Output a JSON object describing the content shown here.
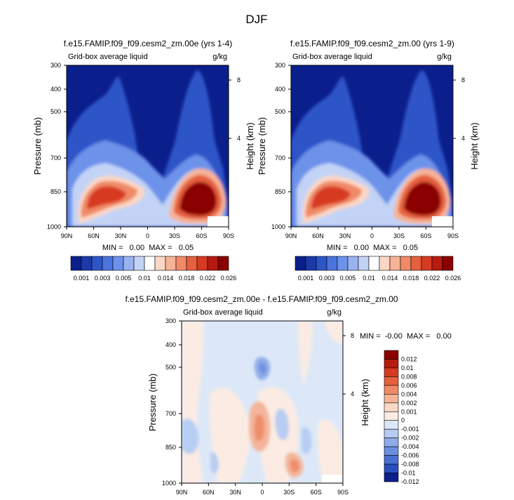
{
  "page": {
    "title": "DJF"
  },
  "chart_data": [
    {
      "type": "heatmap",
      "title": "f.e15.FAMIP.f09_f09.cesm2_zm.00e (yrs 1-4)",
      "left_label": "Grid-box average liquid",
      "right_label": "g/kg",
      "ylabel": "Pressure (mb)",
      "ylabel_right": "Height (km)",
      "x_ticks": [
        "90N",
        "60N",
        "30N",
        "0",
        "30S",
        "60S",
        "90S"
      ],
      "y_ticks": [
        "300",
        "400",
        "500",
        "700",
        "850",
        "1000"
      ],
      "y_right_ticks": [
        "8",
        "4"
      ],
      "ylim": [
        300,
        1000
      ],
      "y_log_scale": true,
      "minmax_text": "MIN =   0.00  MAX =   0.05",
      "colorbar_labels": [
        "0.001",
        "0.003",
        "0.005",
        "0.01",
        "0.014",
        "0.018",
        "0.022",
        "0.026"
      ],
      "levels": [
        0.001,
        0.002,
        0.003,
        0.004,
        0.005,
        0.0075,
        0.01,
        0.012,
        0.014,
        0.016,
        0.018,
        0.02,
        0.022,
        0.024,
        0.026
      ]
    },
    {
      "type": "heatmap",
      "title": "f.e15.FAMIP.f09_f09.cesm2_zm.00 (yrs 1-9)",
      "left_label": "Grid-box average liquid",
      "right_label": "g/kg",
      "ylabel": "Pressure (mb)",
      "ylabel_right": "Height (km)",
      "x_ticks": [
        "90N",
        "60N",
        "30N",
        "0",
        "30S",
        "60S",
        "90S"
      ],
      "y_ticks": [
        "300",
        "400",
        "500",
        "700",
        "850",
        "1000"
      ],
      "y_right_ticks": [
        "8",
        "4"
      ],
      "ylim": [
        300,
        1000
      ],
      "y_log_scale": true,
      "minmax_text": "MIN =   0.00  MAX =   0.05",
      "colorbar_labels": [
        "0.001",
        "0.003",
        "0.005",
        "0.01",
        "0.014",
        "0.018",
        "0.022",
        "0.026"
      ],
      "levels": [
        0.001,
        0.002,
        0.003,
        0.004,
        0.005,
        0.0075,
        0.01,
        0.012,
        0.014,
        0.016,
        0.018,
        0.02,
        0.022,
        0.024,
        0.026
      ]
    },
    {
      "type": "heatmap",
      "title": "f.e15.FAMIP.f09_f09.cesm2_zm.00e - f.e15.FAMIP.f09_f09.cesm2_zm.00",
      "left_label": "Grid-box average liquid",
      "right_label": "g/kg",
      "ylabel": "Pressure (mb)",
      "ylabel_right": "Height (km)",
      "x_ticks": [
        "90N",
        "60N",
        "30N",
        "0",
        "30S",
        "60S",
        "90S"
      ],
      "y_ticks": [
        "300",
        "400",
        "500",
        "700",
        "850",
        "1000"
      ],
      "y_right_ticks": [
        "8",
        "4"
      ],
      "ylim": [
        300,
        1000
      ],
      "y_log_scale": true,
      "minmax_text": "MIN =  -0.00  MAX =   0.00",
      "colorbar_labels": [
        "0.012",
        "0.01",
        "0.008",
        "0.006",
        "0.004",
        "0.002",
        "0.001",
        "0",
        "-0.001",
        "-0.002",
        "-0.004",
        "-0.006",
        "-0.008",
        "-0.01",
        "-0.012"
      ],
      "levels": [
        0.012,
        0.01,
        0.008,
        0.006,
        0.004,
        0.002,
        0.001,
        0,
        -0.001,
        -0.002,
        -0.004,
        -0.006,
        -0.008,
        -0.01,
        -0.012
      ]
    }
  ],
  "colors": {
    "seq_colorbar": [
      "#0b1f8c",
      "#1a3aa8",
      "#2e55c8",
      "#4a74de",
      "#6d92ea",
      "#98b3f0",
      "#c3d3f6",
      "#ffffff",
      "#fbd7c5",
      "#f6b396",
      "#f08a66",
      "#e65f3e",
      "#d63a22",
      "#b71a0e",
      "#8b0000"
    ],
    "diff_colorbar": [
      "#8b0000",
      "#b71a0e",
      "#d63a22",
      "#e65f3e",
      "#f08a66",
      "#f6b396",
      "#fbd7c5",
      "#fdece2",
      "#dce8f8",
      "#b6ccf2",
      "#8eacea",
      "#6a8ee0",
      "#4a6fd2",
      "#2a4ec0",
      "#0b1f8c"
    ]
  }
}
